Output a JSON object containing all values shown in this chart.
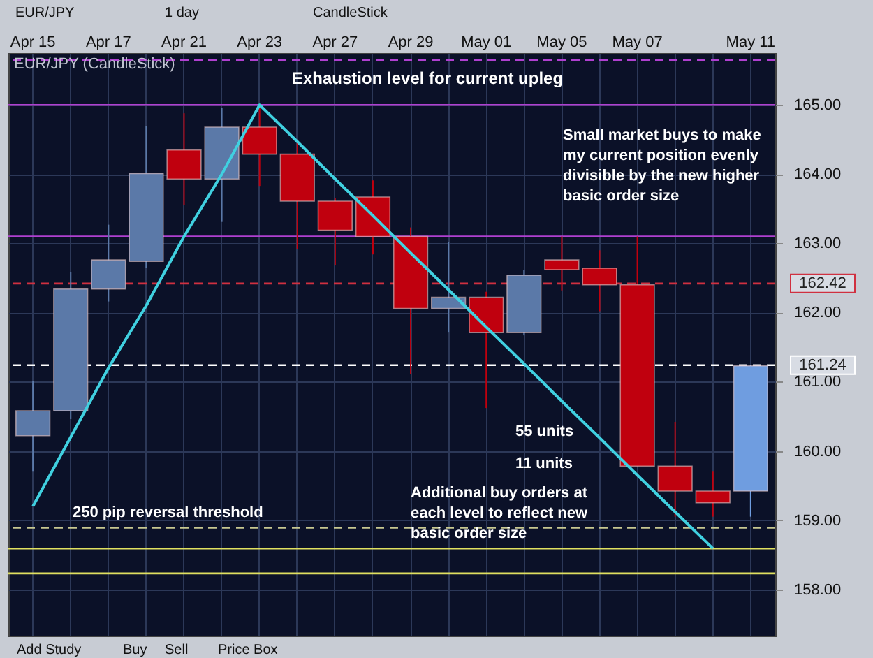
{
  "chart_data": {
    "type": "candlestick",
    "title": "EUR/JPY (CandleStick)",
    "categories": [
      "Apr 15",
      null,
      "Apr 17",
      null,
      "Apr 21",
      null,
      "Apr 23",
      null,
      "Apr 27",
      null,
      "Apr 29",
      null,
      "May 01",
      null,
      "May 05",
      null,
      "May 07",
      null,
      null,
      "May 11"
    ],
    "ohlc": [
      [
        160.22,
        161.01,
        159.7,
        160.58
      ],
      [
        160.58,
        162.58,
        160.46,
        162.34
      ],
      [
        162.34,
        163.27,
        162.16,
        162.76
      ],
      [
        162.74,
        164.7,
        162.64,
        164.01
      ],
      [
        164.35,
        164.88,
        163.55,
        163.93
      ],
      [
        163.93,
        164.96,
        163.31,
        164.68
      ],
      [
        164.68,
        164.98,
        163.83,
        164.29
      ],
      [
        164.29,
        164.5,
        162.92,
        163.61
      ],
      [
        163.61,
        163.65,
        162.68,
        163.19
      ],
      [
        163.67,
        163.91,
        162.84,
        163.1
      ],
      [
        163.1,
        163.23,
        161.11,
        162.06
      ],
      [
        162.06,
        163.02,
        161.71,
        162.22
      ],
      [
        162.22,
        162.3,
        160.62,
        161.71
      ],
      [
        161.71,
        162.62,
        161.67,
        162.54
      ],
      [
        162.76,
        163.1,
        162.32,
        162.62
      ],
      [
        162.64,
        162.9,
        162.02,
        162.4
      ],
      [
        162.4,
        163.1,
        159.78,
        159.78
      ],
      [
        159.78,
        160.42,
        159.05,
        159.42
      ],
      [
        159.42,
        159.7,
        159.05,
        159.25
      ],
      [
        159.42,
        161.24,
        159.05,
        161.23
      ]
    ],
    "colors": [
      "#5b79a8",
      "#5b79a8",
      "#5b79a8",
      "#5b79a8",
      "#c0000e",
      "#5b79a8",
      "#c0000e",
      "#c0000e",
      "#c0000e",
      "#c0000e",
      "#c0000e",
      "#5b79a8",
      "#c0000e",
      "#5b79a8",
      "#c0000e",
      "#c0000e",
      "#c0000e",
      "#c0000e",
      "#c0000e",
      "#6f9de0"
    ],
    "series": [
      {
        "type": "line",
        "color": "#40d0e0",
        "values": [
          159.2,
          160.2,
          161.2,
          162.1,
          163.1,
          164.0,
          165.0,
          164.47,
          163.93,
          163.4,
          162.86,
          162.33,
          161.79,
          161.26,
          160.72,
          160.19,
          159.65,
          159.12,
          158.59,
          null
        ]
      }
    ],
    "ylim": [
      157.33,
      165.75
    ],
    "yticks": [
      {
        "value": 158,
        "label": "158.00"
      },
      {
        "value": 159,
        "label": "159.00"
      },
      {
        "value": 160,
        "label": "160.00"
      },
      {
        "value": 161,
        "label": "161.00"
      },
      {
        "value": 162,
        "label": "162.00"
      },
      {
        "value": 163,
        "label": "163.00"
      },
      {
        "value": 164,
        "label": "164.00"
      },
      {
        "value": 165,
        "label": "165.00"
      }
    ],
    "grid": true,
    "marker": "none",
    "ref_lines": [
      {
        "axis": "y",
        "value": 165.65,
        "color": "#b040d0",
        "line_style": "dashed"
      },
      {
        "axis": "y",
        "value": 165.0,
        "color": "#b040d0",
        "line_style": "solid"
      },
      {
        "axis": "y",
        "value": 163.1,
        "color": "#b040d0",
        "line_style": "solid"
      },
      {
        "axis": "y",
        "value": 162.42,
        "color": "#d03040",
        "line_style": "dashed",
        "label": "162.42"
      },
      {
        "axis": "y",
        "value": 161.24,
        "color": "#ffffff",
        "line_style": "dashed",
        "label": "161.24"
      },
      {
        "axis": "y",
        "value": 158.89,
        "color": "#c8c890",
        "line_style": "dashed"
      },
      {
        "axis": "y",
        "value": 158.59,
        "color": "#e0e060",
        "line_style": "solid"
      },
      {
        "axis": "y",
        "value": 158.23,
        "color": "#e0e060",
        "line_style": "solid"
      }
    ],
    "annotations": [
      "EUR/JPY",
      "1 day",
      "CandleStick",
      "Exhaustion level for current upleg",
      "Small market buys to make my current position evenly divisible by the new higher basic order size",
      "55 units",
      "11 units",
      "Additional buy orders at each level to reflect new basic order size",
      "250 pip reversal threshold",
      "Add Study",
      "Buy",
      "Sell",
      "Price Box"
    ]
  }
}
